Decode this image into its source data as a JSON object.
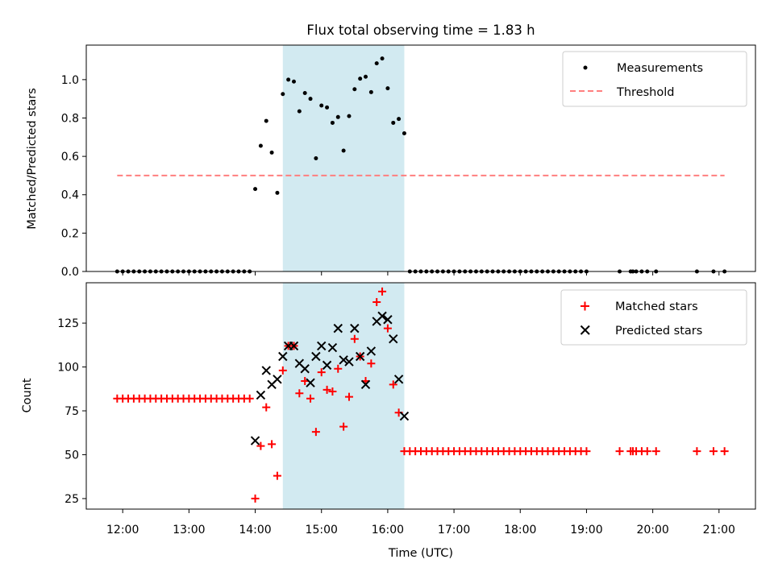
{
  "title": "Flux total observing time = 1.83 h",
  "xlabel": "Time (UTC)",
  "x_ticks": [
    "12:00",
    "13:00",
    "14:00",
    "15:00",
    "16:00",
    "17:00",
    "18:00",
    "19:00",
    "20:00",
    "21:00"
  ],
  "highlight_span": {
    "start": "14:25",
    "end": "16:15",
    "color": "#add8e6"
  },
  "colors": {
    "measurement": "#000000",
    "threshold": "#ff7f7f",
    "matched": "#ff0000",
    "predicted": "#000000"
  },
  "chart_data": [
    {
      "type": "scatter",
      "ylabel": "Matched/Predicted stars",
      "ylim": [
        0,
        1.18
      ],
      "y_ticks": [
        "0.0",
        "0.2",
        "0.4",
        "0.6",
        "0.8",
        "1.0"
      ],
      "legend": {
        "placement": "top-right",
        "entries": [
          "Measurements",
          "Threshold"
        ]
      },
      "threshold": {
        "name": "Threshold",
        "value": 0.5,
        "x_range": [
          "11:55",
          "21:05"
        ]
      },
      "series": [
        {
          "name": "Measurements",
          "points": [
            [
              "11:55",
              0
            ],
            [
              "12:00",
              0
            ],
            [
              "12:05",
              0
            ],
            [
              "12:10",
              0
            ],
            [
              "12:15",
              0
            ],
            [
              "12:20",
              0
            ],
            [
              "12:25",
              0
            ],
            [
              "12:30",
              0
            ],
            [
              "12:35",
              0
            ],
            [
              "12:40",
              0
            ],
            [
              "12:45",
              0
            ],
            [
              "12:50",
              0
            ],
            [
              "12:55",
              0
            ],
            [
              "13:00",
              0
            ],
            [
              "13:05",
              0
            ],
            [
              "13:10",
              0
            ],
            [
              "13:15",
              0
            ],
            [
              "13:20",
              0
            ],
            [
              "13:25",
              0
            ],
            [
              "13:30",
              0
            ],
            [
              "13:35",
              0
            ],
            [
              "13:40",
              0
            ],
            [
              "13:45",
              0
            ],
            [
              "13:50",
              0
            ],
            [
              "13:55",
              0
            ],
            [
              "14:00",
              0.43
            ],
            [
              "14:05",
              0.655
            ],
            [
              "14:10",
              0.785
            ],
            [
              "14:15",
              0.62
            ],
            [
              "14:20",
              0.41
            ],
            [
              "14:25",
              0.925
            ],
            [
              "14:30",
              1.0
            ],
            [
              "14:35",
              0.99
            ],
            [
              "14:40",
              0.835
            ],
            [
              "14:45",
              0.93
            ],
            [
              "14:50",
              0.9
            ],
            [
              "14:55",
              0.59
            ],
            [
              "15:00",
              0.865
            ],
            [
              "15:05",
              0.855
            ],
            [
              "15:10",
              0.775
            ],
            [
              "15:15",
              0.805
            ],
            [
              "15:20",
              0.63
            ],
            [
              "15:25",
              0.81
            ],
            [
              "15:30",
              0.95
            ],
            [
              "15:35",
              1.005
            ],
            [
              "15:40",
              1.015
            ],
            [
              "15:45",
              0.935
            ],
            [
              "15:50",
              1.085
            ],
            [
              "15:55",
              1.11
            ],
            [
              "16:00",
              0.955
            ],
            [
              "16:05",
              0.775
            ],
            [
              "16:10",
              0.795
            ],
            [
              "16:15",
              0.72
            ],
            [
              "16:20",
              0
            ],
            [
              "16:25",
              0
            ],
            [
              "16:30",
              0
            ],
            [
              "16:35",
              0
            ],
            [
              "16:40",
              0
            ],
            [
              "16:45",
              0
            ],
            [
              "16:50",
              0
            ],
            [
              "16:55",
              0
            ],
            [
              "17:00",
              0
            ],
            [
              "17:05",
              0
            ],
            [
              "17:10",
              0
            ],
            [
              "17:15",
              0
            ],
            [
              "17:20",
              0
            ],
            [
              "17:25",
              0
            ],
            [
              "17:30",
              0
            ],
            [
              "17:35",
              0
            ],
            [
              "17:40",
              0
            ],
            [
              "17:45",
              0
            ],
            [
              "17:50",
              0
            ],
            [
              "17:55",
              0
            ],
            [
              "18:00",
              0
            ],
            [
              "18:05",
              0
            ],
            [
              "18:10",
              0
            ],
            [
              "18:15",
              0
            ],
            [
              "18:20",
              0
            ],
            [
              "18:25",
              0
            ],
            [
              "18:30",
              0
            ],
            [
              "18:35",
              0
            ],
            [
              "18:40",
              0
            ],
            [
              "18:45",
              0
            ],
            [
              "18:50",
              0
            ],
            [
              "18:55",
              0
            ],
            [
              "19:00",
              0
            ],
            [
              "19:30",
              0
            ],
            [
              "19:40",
              0
            ],
            [
              "19:42",
              0
            ],
            [
              "19:45",
              0
            ],
            [
              "19:50",
              0
            ],
            [
              "19:55",
              0
            ],
            [
              "20:03",
              0
            ],
            [
              "20:40",
              0
            ],
            [
              "20:55",
              0
            ],
            [
              "21:05",
              0
            ]
          ]
        }
      ]
    },
    {
      "type": "scatter",
      "ylabel": "Count",
      "ylim": [
        19,
        148
      ],
      "y_ticks": [
        "25",
        "50",
        "75",
        "100",
        "125"
      ],
      "legend": {
        "placement": "top-right",
        "entries": [
          "Matched stars",
          "Predicted stars"
        ]
      },
      "series": [
        {
          "name": "Matched stars",
          "marker": "plus",
          "points": [
            [
              "11:55",
              82
            ],
            [
              "12:00",
              82
            ],
            [
              "12:05",
              82
            ],
            [
              "12:10",
              82
            ],
            [
              "12:15",
              82
            ],
            [
              "12:20",
              82
            ],
            [
              "12:25",
              82
            ],
            [
              "12:30",
              82
            ],
            [
              "12:35",
              82
            ],
            [
              "12:40",
              82
            ],
            [
              "12:45",
              82
            ],
            [
              "12:50",
              82
            ],
            [
              "12:55",
              82
            ],
            [
              "13:00",
              82
            ],
            [
              "13:05",
              82
            ],
            [
              "13:10",
              82
            ],
            [
              "13:15",
              82
            ],
            [
              "13:20",
              82
            ],
            [
              "13:25",
              82
            ],
            [
              "13:30",
              82
            ],
            [
              "13:35",
              82
            ],
            [
              "13:40",
              82
            ],
            [
              "13:45",
              82
            ],
            [
              "13:50",
              82
            ],
            [
              "13:55",
              82
            ],
            [
              "14:00",
              25
            ],
            [
              "14:05",
              55
            ],
            [
              "14:10",
              77
            ],
            [
              "14:15",
              56
            ],
            [
              "14:20",
              38
            ],
            [
              "14:25",
              98
            ],
            [
              "14:30",
              112
            ],
            [
              "14:35",
              112
            ],
            [
              "14:40",
              85
            ],
            [
              "14:45",
              92
            ],
            [
              "14:50",
              82
            ],
            [
              "14:55",
              63
            ],
            [
              "15:00",
              97
            ],
            [
              "15:05",
              87
            ],
            [
              "15:10",
              86
            ],
            [
              "15:15",
              99
            ],
            [
              "15:20",
              66
            ],
            [
              "15:25",
              83
            ],
            [
              "15:30",
              116
            ],
            [
              "15:35",
              106
            ],
            [
              "15:40",
              92
            ],
            [
              "15:45",
              102
            ],
            [
              "15:50",
              137
            ],
            [
              "15:55",
              143
            ],
            [
              "16:00",
              122
            ],
            [
              "16:05",
              90
            ],
            [
              "16:10",
              74
            ],
            [
              "16:15",
              52
            ],
            [
              "16:20",
              52
            ],
            [
              "16:25",
              52
            ],
            [
              "16:30",
              52
            ],
            [
              "16:35",
              52
            ],
            [
              "16:40",
              52
            ],
            [
              "16:45",
              52
            ],
            [
              "16:50",
              52
            ],
            [
              "16:55",
              52
            ],
            [
              "17:00",
              52
            ],
            [
              "17:05",
              52
            ],
            [
              "17:10",
              52
            ],
            [
              "17:15",
              52
            ],
            [
              "17:20",
              52
            ],
            [
              "17:25",
              52
            ],
            [
              "17:30",
              52
            ],
            [
              "17:35",
              52
            ],
            [
              "17:40",
              52
            ],
            [
              "17:45",
              52
            ],
            [
              "17:50",
              52
            ],
            [
              "17:55",
              52
            ],
            [
              "18:00",
              52
            ],
            [
              "18:05",
              52
            ],
            [
              "18:10",
              52
            ],
            [
              "18:15",
              52
            ],
            [
              "18:20",
              52
            ],
            [
              "18:25",
              52
            ],
            [
              "18:30",
              52
            ],
            [
              "18:35",
              52
            ],
            [
              "18:40",
              52
            ],
            [
              "18:45",
              52
            ],
            [
              "18:50",
              52
            ],
            [
              "18:55",
              52
            ],
            [
              "19:00",
              52
            ],
            [
              "19:30",
              52
            ],
            [
              "19:40",
              52
            ],
            [
              "19:42",
              52
            ],
            [
              "19:45",
              52
            ],
            [
              "19:50",
              52
            ],
            [
              "19:55",
              52
            ],
            [
              "20:03",
              52
            ],
            [
              "20:40",
              52
            ],
            [
              "20:55",
              52
            ],
            [
              "21:05",
              52
            ]
          ]
        },
        {
          "name": "Predicted stars",
          "marker": "x",
          "points": [
            [
              "14:00",
              58
            ],
            [
              "14:05",
              84
            ],
            [
              "14:10",
              98
            ],
            [
              "14:15",
              90
            ],
            [
              "14:20",
              93
            ],
            [
              "14:25",
              106
            ],
            [
              "14:30",
              112
            ],
            [
              "14:35",
              112
            ],
            [
              "14:40",
              102
            ],
            [
              "14:45",
              99
            ],
            [
              "14:50",
              91
            ],
            [
              "14:55",
              106
            ],
            [
              "15:00",
              112
            ],
            [
              "15:05",
              101
            ],
            [
              "15:10",
              111
            ],
            [
              "15:15",
              122
            ],
            [
              "15:20",
              104
            ],
            [
              "15:25",
              103
            ],
            [
              "15:30",
              122
            ],
            [
              "15:35",
              106
            ],
            [
              "15:40",
              90
            ],
            [
              "15:45",
              109
            ],
            [
              "15:50",
              126
            ],
            [
              "15:55",
              129
            ],
            [
              "16:00",
              127
            ],
            [
              "16:05",
              116
            ],
            [
              "16:10",
              93
            ],
            [
              "16:15",
              72
            ]
          ]
        }
      ]
    }
  ]
}
